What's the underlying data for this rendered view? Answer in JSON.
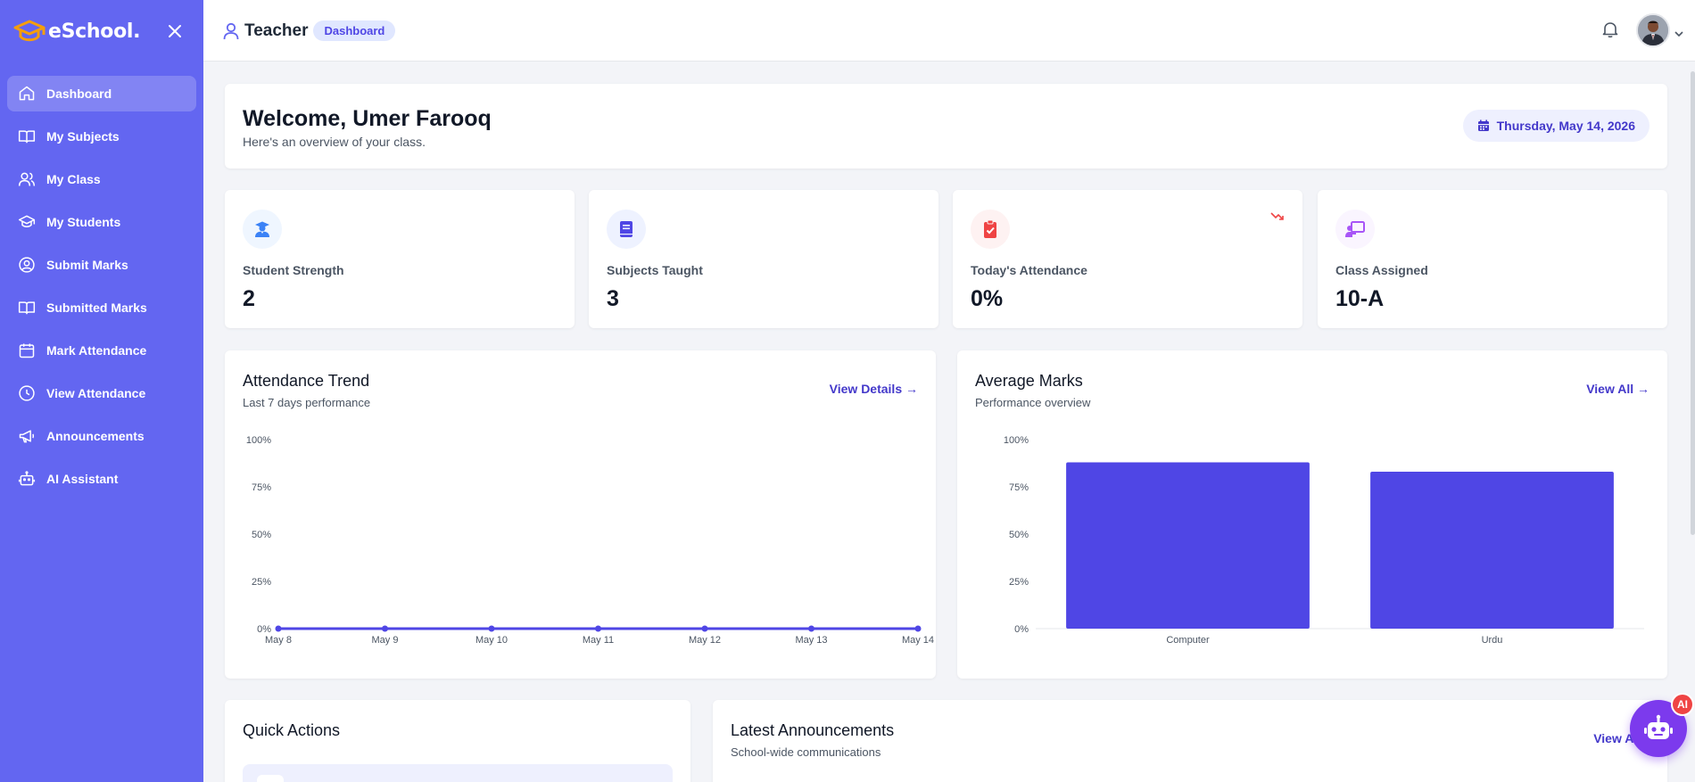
{
  "brand": {
    "name": "eSchool."
  },
  "sidebar": {
    "items": [
      {
        "label": "Dashboard",
        "icon": "home-icon",
        "active": true
      },
      {
        "label": "My Subjects",
        "icon": "book-open-icon"
      },
      {
        "label": "My Class",
        "icon": "users-icon"
      },
      {
        "label": "My Students",
        "icon": "graduation-cap-icon"
      },
      {
        "label": "Submit Marks",
        "icon": "user-circle-icon"
      },
      {
        "label": "Submitted Marks",
        "icon": "book-open-icon"
      },
      {
        "label": "Mark Attendance",
        "icon": "calendar-icon"
      },
      {
        "label": "View Attendance",
        "icon": "clock-icon"
      },
      {
        "label": "Announcements",
        "icon": "megaphone-icon"
      },
      {
        "label": "AI Assistant",
        "icon": "robot-icon"
      }
    ]
  },
  "topbar": {
    "role": "Teacher",
    "badge": "Dashboard"
  },
  "welcome": {
    "title": "Welcome, Umer Farooq",
    "subtitle": "Here's an overview of your class.",
    "date": "Thursday, May 14, 2026"
  },
  "stats": [
    {
      "label": "Student Strength",
      "value": "2",
      "icon": "graduate-icon",
      "color": "#3b82f6",
      "bg": "#eff6ff"
    },
    {
      "label": "Subjects Taught",
      "value": "3",
      "icon": "book-icon",
      "color": "#4f46e5",
      "bg": "#eef2ff"
    },
    {
      "label": "Today's Attendance",
      "value": "0%",
      "icon": "clipboard-check-icon",
      "color": "#ef4444",
      "bg": "#fef2f2"
    },
    {
      "label": "Class Assigned",
      "value": "10-A",
      "icon": "chalkboard-teacher-icon",
      "color": "#a855f7",
      "bg": "#faf5ff"
    }
  ],
  "attendance_chart": {
    "title": "Attendance Trend",
    "subtitle": "Last 7 days performance",
    "link": "View Details →"
  },
  "marks_chart": {
    "title": "Average Marks",
    "subtitle": "Performance overview",
    "link": "View All →"
  },
  "chart_data": [
    {
      "type": "line",
      "title": "Attendance Trend",
      "categories": [
        "May 8",
        "May 9",
        "May 10",
        "May 11",
        "May 12",
        "May 13",
        "May 14"
      ],
      "values": [
        0,
        0,
        0,
        0,
        0,
        0,
        0
      ],
      "yticks": [
        "100%",
        "75%",
        "50%",
        "25%",
        "0%"
      ],
      "ylim": [
        0,
        100
      ],
      "color": "#4f46e5"
    },
    {
      "type": "bar",
      "title": "Average Marks",
      "categories": [
        "Computer",
        "Urdu"
      ],
      "values": [
        88,
        83
      ],
      "yticks": [
        "100%",
        "75%",
        "50%",
        "25%",
        "0%"
      ],
      "ylim": [
        0,
        100
      ],
      "color": "#4f46e5"
    }
  ],
  "quick_actions": {
    "title": "Quick Actions"
  },
  "announcements": {
    "title": "Latest Announcements",
    "subtitle": "School-wide communications",
    "link": "View All →"
  },
  "fab": {
    "badge": "AI"
  }
}
